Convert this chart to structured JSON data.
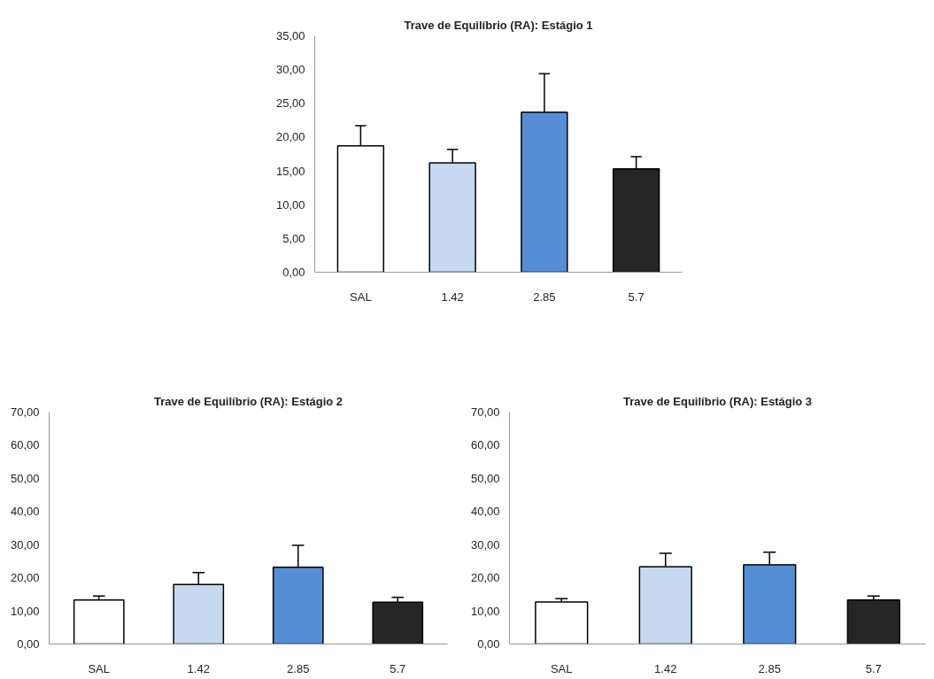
{
  "chart_data": [
    {
      "type": "bar",
      "title": "Trave de Equilíbrio (RA): Estágio 1",
      "categories": [
        "SAL",
        "1.42",
        "2.85",
        "5.7"
      ],
      "values": [
        18.7,
        16.2,
        23.7,
        15.3
      ],
      "errors": [
        3.0,
        2.0,
        5.7,
        1.8
      ],
      "colors": [
        "#ffffff",
        "#c6d9f1",
        "#558ed5",
        "#262626"
      ],
      "ylim": [
        0,
        35
      ],
      "yticks": [
        {
          "value": 0,
          "label": "0,00"
        },
        {
          "value": 5,
          "label": "5,00"
        },
        {
          "value": 10,
          "label": "10,00"
        },
        {
          "value": 15,
          "label": "15,00"
        },
        {
          "value": 20,
          "label": "20,00"
        },
        {
          "value": 25,
          "label": "25,00"
        },
        {
          "value": 30,
          "label": "30,00"
        },
        {
          "value": 35,
          "label": "35,00"
        }
      ],
      "grid": false
    },
    {
      "type": "bar",
      "title": "Trave de Equilíbrio (RA): Estágio 2",
      "categories": [
        "SAL",
        "1.42",
        "2.85",
        "5.7"
      ],
      "values": [
        13.3,
        18.0,
        23.2,
        12.6
      ],
      "errors": [
        1.2,
        3.6,
        6.6,
        1.5
      ],
      "colors": [
        "#ffffff",
        "#c6d9f1",
        "#558ed5",
        "#262626"
      ],
      "ylim": [
        0,
        70
      ],
      "yticks": [
        {
          "value": 0,
          "label": "0,00"
        },
        {
          "value": 10,
          "label": "10,00"
        },
        {
          "value": 20,
          "label": "20,00"
        },
        {
          "value": 30,
          "label": "30,00"
        },
        {
          "value": 40,
          "label": "40,00"
        },
        {
          "value": 50,
          "label": "50,00"
        },
        {
          "value": 60,
          "label": "60,00"
        },
        {
          "value": 70,
          "label": "70,00"
        }
      ],
      "grid": false
    },
    {
      "type": "bar",
      "title": "Trave de Equilíbrio (RA): Estágio 3",
      "categories": [
        "SAL",
        "1.42",
        "2.85",
        "5.7"
      ],
      "values": [
        12.7,
        23.3,
        23.9,
        13.3
      ],
      "errors": [
        1.0,
        4.1,
        3.8,
        1.2
      ],
      "colors": [
        "#ffffff",
        "#c6d9f1",
        "#558ed5",
        "#262626"
      ],
      "ylim": [
        0,
        70
      ],
      "yticks": [
        {
          "value": 0,
          "label": "0,00"
        },
        {
          "value": 10,
          "label": "10,00"
        },
        {
          "value": 20,
          "label": "20,00"
        },
        {
          "value": 30,
          "label": "30,00"
        },
        {
          "value": 40,
          "label": "40,00"
        },
        {
          "value": 50,
          "label": "50,00"
        },
        {
          "value": 60,
          "label": "60,00"
        },
        {
          "value": 70,
          "label": "70,00"
        }
      ],
      "grid": false
    }
  ]
}
